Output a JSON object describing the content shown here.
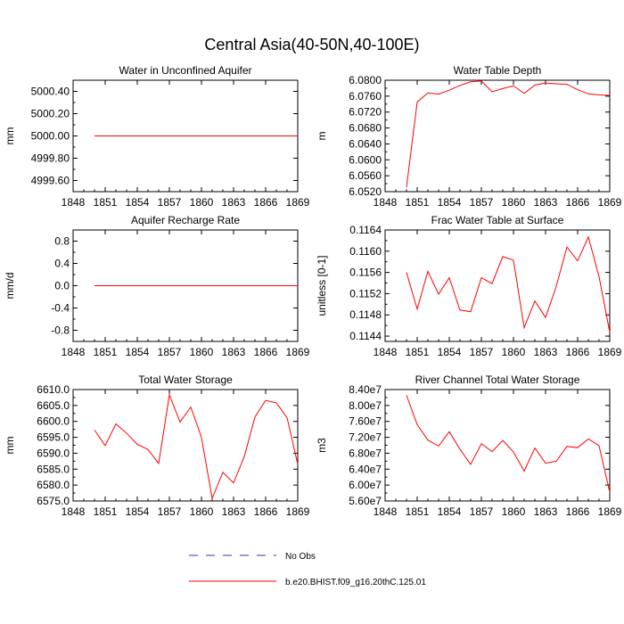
{
  "title": "Central Asia(40-50N,40-100E)",
  "colors": {
    "model": "#ff0000",
    "obs": "#3333cc",
    "axis": "#000000"
  },
  "legend": {
    "placement": "bottom-center",
    "entries": [
      {
        "label": "No Obs",
        "style": "dashed",
        "color": "#3333cc"
      },
      {
        "label": "b.e20.BHIST.f09_g16.20thC.125.01",
        "style": "solid",
        "color": "#ff0000"
      }
    ]
  },
  "chart_data": [
    {
      "type": "line",
      "title": "Water in Unconfined Aquifer",
      "ylabel": "mm",
      "xlim": [
        1848,
        1869
      ],
      "ylim": [
        4999.5,
        5000.5
      ],
      "x_ticks": [
        "1848",
        "1851",
        "1854",
        "1857",
        "1860",
        "1863",
        "1866",
        "1869"
      ],
      "y_ticks": [
        4999.6,
        4999.8,
        5000.0,
        5000.2,
        5000.4
      ],
      "y_tick_labels": [
        "4999.60",
        "4999.80",
        "5000.00",
        "5000.20",
        "5000.40"
      ],
      "x": [
        1850,
        1851,
        1852,
        1853,
        1854,
        1855,
        1856,
        1857,
        1858,
        1859,
        1860,
        1861,
        1862,
        1863,
        1864,
        1865,
        1866,
        1867,
        1868,
        1869
      ],
      "values": [
        5000,
        5000,
        5000,
        5000,
        5000,
        5000,
        5000,
        5000,
        5000,
        5000,
        5000,
        5000,
        5000,
        5000,
        5000,
        5000,
        5000,
        5000,
        5000,
        5000
      ]
    },
    {
      "type": "line",
      "title": "Water Table Depth",
      "ylabel": "m",
      "xlim": [
        1848,
        1869
      ],
      "ylim": [
        6.052,
        6.08
      ],
      "x_ticks": [
        "1848",
        "1851",
        "1854",
        "1857",
        "1860",
        "1863",
        "1866",
        "1869"
      ],
      "y_ticks": [
        6.052,
        6.056,
        6.06,
        6.064,
        6.068,
        6.072,
        6.076,
        6.08
      ],
      "y_tick_labels": [
        "6.0520",
        "6.0560",
        "6.0600",
        "6.0640",
        "6.0680",
        "6.0720",
        "6.0760",
        "6.0800"
      ],
      "x": [
        1850,
        1851,
        1852,
        1853,
        1854,
        1855,
        1856,
        1857,
        1858,
        1859,
        1860,
        1861,
        1862,
        1863,
        1864,
        1865,
        1866,
        1867,
        1868,
        1869
      ],
      "values": [
        6.0531,
        6.0745,
        6.0768,
        6.0765,
        6.0775,
        6.0787,
        6.0796,
        6.0798,
        6.0771,
        6.0779,
        6.0786,
        6.0767,
        6.0788,
        6.0793,
        6.0791,
        6.079,
        6.0776,
        6.0766,
        6.0763,
        6.0762
      ]
    },
    {
      "type": "line",
      "title": "Aquifer Recharge Rate",
      "ylabel": "mm/d",
      "xlim": [
        1848,
        1869
      ],
      "ylim": [
        -1.0,
        1.0
      ],
      "x_ticks": [
        "1848",
        "1851",
        "1854",
        "1857",
        "1860",
        "1863",
        "1866",
        "1869"
      ],
      "y_ticks": [
        -0.8,
        -0.4,
        0.0,
        0.4,
        0.8
      ],
      "y_tick_labels": [
        "-0.8",
        "-0.4",
        "0.0",
        "0.4",
        "0.8"
      ],
      "x": [
        1850,
        1851,
        1852,
        1853,
        1854,
        1855,
        1856,
        1857,
        1858,
        1859,
        1860,
        1861,
        1862,
        1863,
        1864,
        1865,
        1866,
        1867,
        1868,
        1869
      ],
      "values": [
        0,
        0,
        0,
        0,
        0,
        0,
        0,
        0,
        0,
        0,
        0,
        0,
        0,
        0,
        0,
        0,
        0,
        0,
        0,
        0
      ]
    },
    {
      "type": "line",
      "title": "Frac Water Table at Surface",
      "ylabel": "unitless [0-1]",
      "xlim": [
        1848,
        1869
      ],
      "ylim": [
        0.1143,
        0.1164
      ],
      "x_ticks": [
        "1848",
        "1851",
        "1854",
        "1857",
        "1860",
        "1863",
        "1866",
        "1869"
      ],
      "y_ticks": [
        0.1144,
        0.1148,
        0.1152,
        0.1156,
        0.116,
        0.1164
      ],
      "y_tick_labels": [
        "0.1144",
        "0.1148",
        "0.1152",
        "0.1156",
        "0.1160",
        "0.1164"
      ],
      "x": [
        1850,
        1851,
        1852,
        1853,
        1854,
        1855,
        1856,
        1857,
        1858,
        1859,
        1860,
        1861,
        1862,
        1863,
        1864,
        1865,
        1866,
        1867,
        1868,
        1869
      ],
      "values": [
        0.1156,
        0.11491,
        0.11562,
        0.11519,
        0.1155,
        0.11489,
        0.11486,
        0.1155,
        0.11539,
        0.1159,
        0.11583,
        0.11456,
        0.11506,
        0.11475,
        0.11534,
        0.11608,
        0.11582,
        0.11627,
        0.11552,
        0.11447
      ]
    },
    {
      "type": "line",
      "title": "Total Water Storage",
      "ylabel": "mm",
      "xlim": [
        1848,
        1869
      ],
      "ylim": [
        6575,
        6610
      ],
      "x_ticks": [
        "1848",
        "1851",
        "1854",
        "1857",
        "1860",
        "1863",
        "1866",
        "1869"
      ],
      "y_ticks": [
        6575,
        6580,
        6585,
        6590,
        6595,
        6600,
        6605,
        6610
      ],
      "y_tick_labels": [
        "6575.0",
        "6580.0",
        "6585.0",
        "6590.0",
        "6595.0",
        "6600.0",
        "6605.0",
        "6610.0"
      ],
      "x": [
        1850,
        1851,
        1852,
        1853,
        1854,
        1855,
        1856,
        1857,
        1858,
        1859,
        1860,
        1861,
        1862,
        1863,
        1864,
        1865,
        1866,
        1867,
        1868,
        1869
      ],
      "values": [
        6597.3,
        6592.4,
        6599.2,
        6596.3,
        6592.8,
        6591.2,
        6586.8,
        6608.3,
        6599.8,
        6604.5,
        6595.0,
        6575.8,
        6584.0,
        6580.7,
        6588.9,
        6601.4,
        6606.6,
        6605.8,
        6601.2,
        6586.5
      ]
    },
    {
      "type": "line",
      "title": "River Channel Total Water Storage",
      "ylabel": "m3",
      "xlim": [
        1848,
        1869
      ],
      "ylim": [
        56000000,
        84000000
      ],
      "x_ticks": [
        "1848",
        "1851",
        "1854",
        "1857",
        "1860",
        "1863",
        "1866",
        "1869"
      ],
      "y_ticks": [
        56000000,
        60000000,
        64000000,
        68000000,
        72000000,
        76000000,
        80000000,
        84000000
      ],
      "y_tick_labels": [
        "5.60e7",
        "6.00e7",
        "6.40e7",
        "6.80e7",
        "7.20e7",
        "7.60e7",
        "8.00e7",
        "8.40e7"
      ],
      "x": [
        1850,
        1851,
        1852,
        1853,
        1854,
        1855,
        1856,
        1857,
        1858,
        1859,
        1860,
        1861,
        1862,
        1863,
        1864,
        1865,
        1866,
        1867,
        1868,
        1869
      ],
      "values": [
        82600000,
        75200000,
        71300000,
        69800000,
        73400000,
        69000000,
        65200000,
        70400000,
        68400000,
        71200000,
        68300000,
        63500000,
        69300000,
        65500000,
        66000000,
        69700000,
        69400000,
        71600000,
        69900000,
        58200000
      ]
    }
  ]
}
